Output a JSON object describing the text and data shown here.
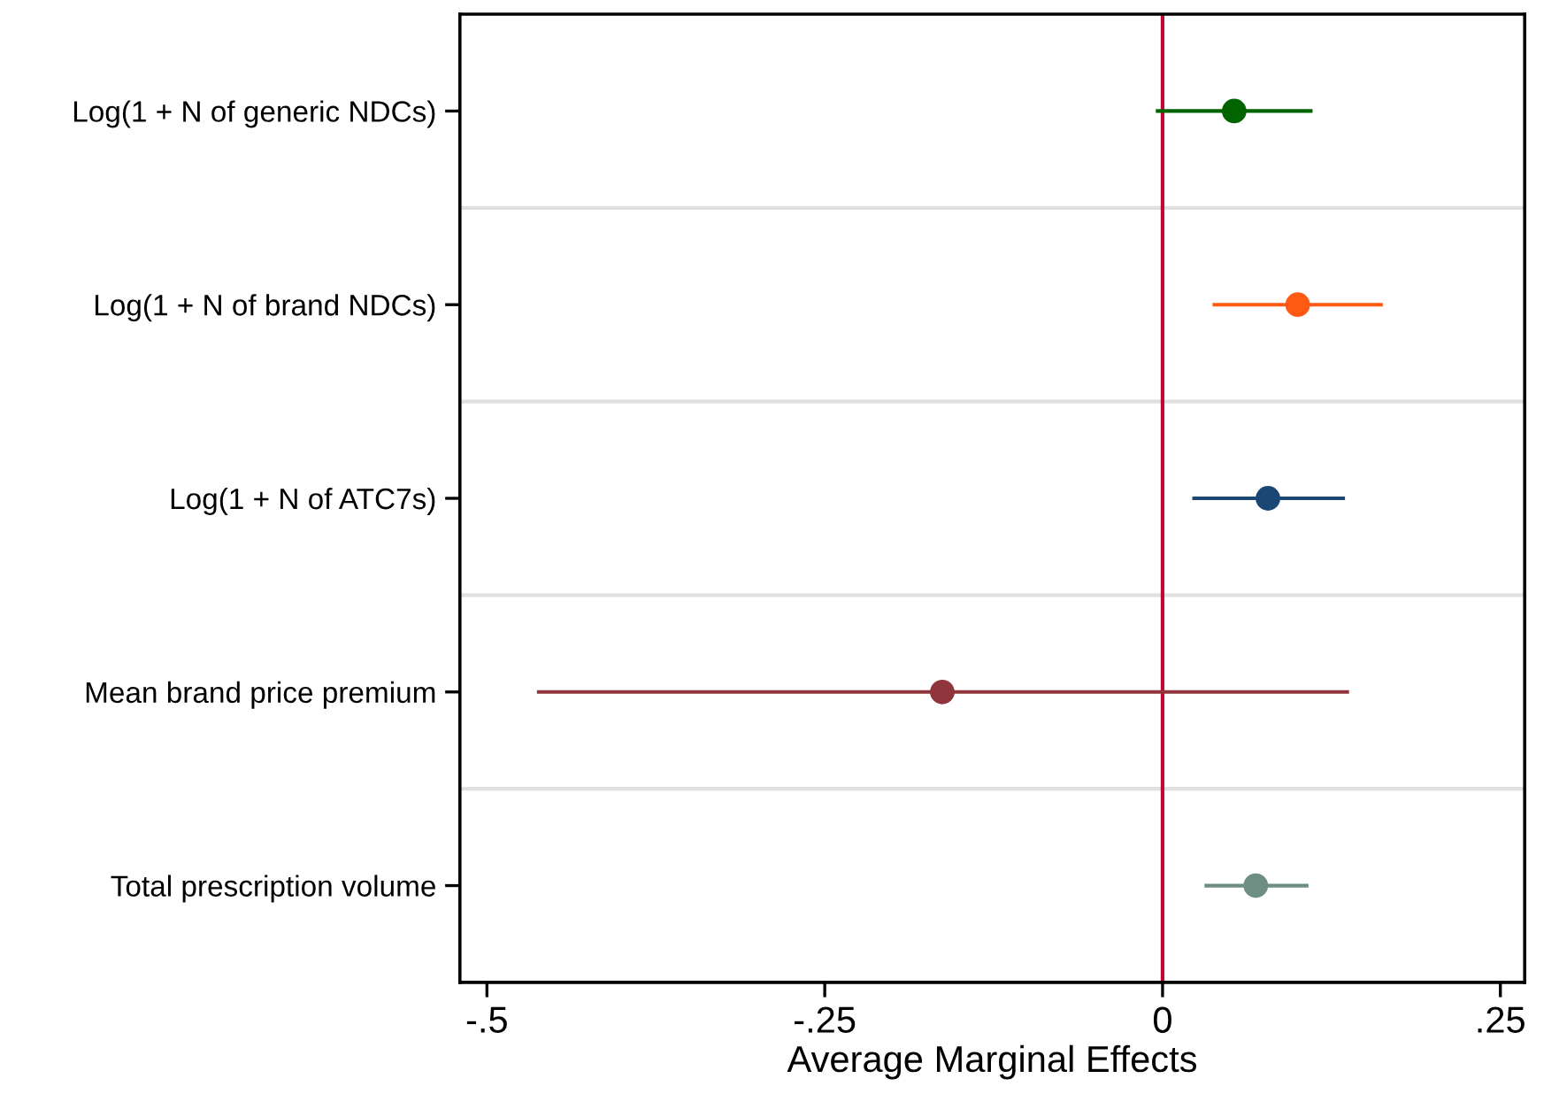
{
  "chart_data": {
    "type": "scatter",
    "orientation": "horizontal",
    "xlabel": "Average Marginal Effects",
    "categories": [
      "Log(1 + N of generic NDCs)",
      "Log(1 + N of brand NDCs)",
      "Log(1 + N of ATC7s)",
      "Mean brand price premium",
      "Total prescription volume"
    ],
    "values": [
      0.053,
      0.1,
      0.078,
      -0.163,
      0.069
    ],
    "errors": [
      [
        -0.005,
        0.111
      ],
      [
        0.037,
        0.163
      ],
      [
        0.022,
        0.135
      ],
      [
        -0.463,
        0.138
      ],
      [
        0.031,
        0.108
      ]
    ],
    "colors": [
      "#006400",
      "#ff5a14",
      "#1a4774",
      "#90353b",
      "#6e8e84"
    ],
    "xlim": [
      -0.52,
      0.268
    ],
    "xticks": [
      {
        "value": -0.5,
        "label": "-.5"
      },
      {
        "value": -0.25,
        "label": "-.25"
      },
      0,
      {
        "value": 0.25,
        "label": ".25"
      }
    ],
    "grid": "y",
    "marker": "circle",
    "ref_lines": [
      {
        "axis": "x",
        "value": 0,
        "color": "#c10534",
        "line_style": "solid"
      }
    ]
  }
}
